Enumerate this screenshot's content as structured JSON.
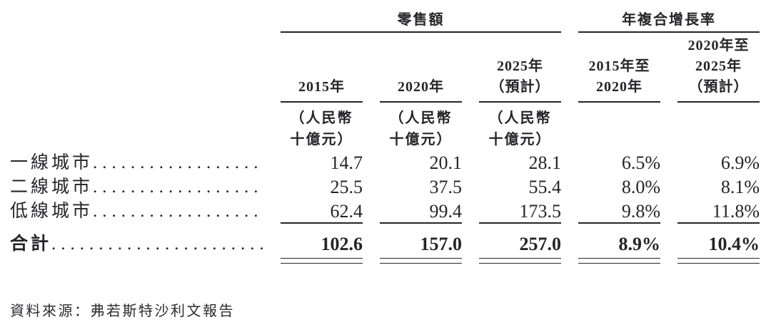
{
  "table": {
    "groups": [
      {
        "label": "零售額"
      },
      {
        "label": "年複合增長率"
      }
    ],
    "columns": [
      {
        "lines": [
          "2015年"
        ],
        "subunit": [
          "（人民幣",
          "十億元）"
        ]
      },
      {
        "lines": [
          "2020年"
        ],
        "subunit": [
          "（人民幣",
          "十億元）"
        ]
      },
      {
        "lines": [
          "2025年",
          "（預計）"
        ],
        "subunit": [
          "（人民幣",
          "十億元）"
        ]
      },
      {
        "lines": [
          "2015年至",
          "2020年"
        ]
      },
      {
        "lines": [
          "2020年至",
          "2025年",
          "（預計）"
        ]
      }
    ],
    "rows": [
      {
        "label": "一線城市",
        "values": [
          "14.7",
          "20.1",
          "28.1",
          "6.5%",
          "6.9%"
        ]
      },
      {
        "label": "二線城市",
        "values": [
          "25.5",
          "37.5",
          "55.4",
          "8.0%",
          "8.1%"
        ]
      },
      {
        "label": "低線城市",
        "values": [
          "62.4",
          "99.4",
          "173.5",
          "9.8%",
          "11.8%"
        ]
      }
    ],
    "total_row": {
      "label": "合計",
      "values": [
        "102.6",
        "157.0",
        "257.0",
        "8.9%",
        "10.4%"
      ]
    }
  },
  "footer": {
    "source": "資料來源：弗若斯特沙利文報告"
  },
  "colors": {
    "ink": "#262428",
    "background": "#ffffff"
  }
}
